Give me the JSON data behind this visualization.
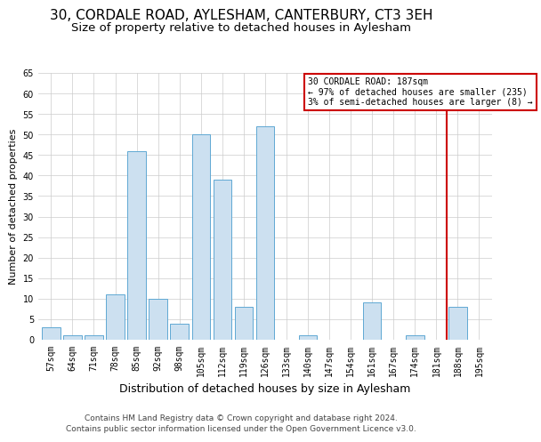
{
  "title": "30, CORDALE ROAD, AYLESHAM, CANTERBURY, CT3 3EH",
  "subtitle": "Size of property relative to detached houses in Aylesham",
  "xlabel": "Distribution of detached houses by size in Aylesham",
  "ylabel": "Number of detached properties",
  "categories": [
    "57sqm",
    "64sqm",
    "71sqm",
    "78sqm",
    "85sqm",
    "92sqm",
    "98sqm",
    "105sqm",
    "112sqm",
    "119sqm",
    "126sqm",
    "133sqm",
    "140sqm",
    "147sqm",
    "154sqm",
    "161sqm",
    "167sqm",
    "174sqm",
    "181sqm",
    "188sqm",
    "195sqm"
  ],
  "values": [
    3,
    1,
    1,
    11,
    46,
    10,
    4,
    50,
    39,
    8,
    52,
    0,
    1,
    0,
    0,
    9,
    0,
    1,
    0,
    8,
    0
  ],
  "bar_color": "#cce0f0",
  "bar_edge_color": "#5fa8d3",
  "annotation_title": "30 CORDALE ROAD: 187sqm",
  "annotation_line1": "← 97% of detached houses are smaller (235)",
  "annotation_line2": "3% of semi-detached houses are larger (8) →",
  "annotation_box_color": "#ffffff",
  "annotation_box_edge_color": "#cc0000",
  "red_line_color": "#cc0000",
  "ylim": [
    0,
    65
  ],
  "yticks": [
    0,
    5,
    10,
    15,
    20,
    25,
    30,
    35,
    40,
    45,
    50,
    55,
    60,
    65
  ],
  "footer_line1": "Contains HM Land Registry data © Crown copyright and database right 2024.",
  "footer_line2": "Contains public sector information licensed under the Open Government Licence v3.0.",
  "title_fontsize": 11,
  "subtitle_fontsize": 9.5,
  "xlabel_fontsize": 9,
  "ylabel_fontsize": 8,
  "tick_fontsize": 7,
  "footer_fontsize": 6.5,
  "annot_fontsize": 7
}
